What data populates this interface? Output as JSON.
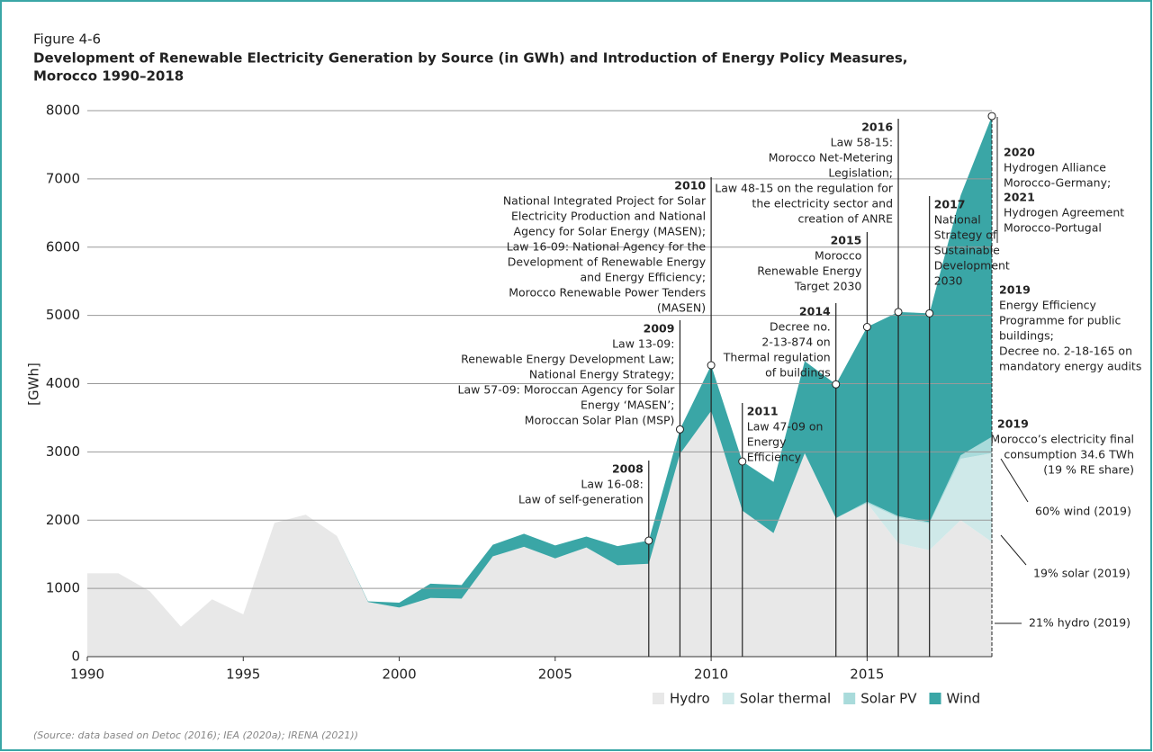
{
  "chart_data": {
    "type": "stacked_area",
    "figure_label": "Figure 4-6",
    "title": "Development of Renewable Electricity Generation by Source (in GWh) and Introduction of Energy Policy Measures,",
    "title_line2": "Morocco 1990–2018",
    "ylabel": "[GWh]",
    "source": "(Source: data based on Detoc (2016); IEA (2020a); IRENA (2021))",
    "x": [
      1990,
      1991,
      1992,
      1993,
      1994,
      1995,
      1996,
      1997,
      1998,
      1999,
      2000,
      2001,
      2002,
      2003,
      2004,
      2005,
      2006,
      2007,
      2008,
      2009,
      2010,
      2011,
      2012,
      2013,
      2014,
      2015,
      2016,
      2017,
      2018,
      2019
    ],
    "xlim": [
      1990,
      2019
    ],
    "xticks": [
      1990,
      1995,
      2000,
      2005,
      2010,
      2015
    ],
    "ylim": [
      0,
      8000
    ],
    "yticks": [
      0,
      1000,
      2000,
      3000,
      4000,
      5000,
      6000,
      7000,
      8000
    ],
    "grid": true,
    "series": [
      {
        "name": "Hydro",
        "color": "#e8e8e8",
        "values": [
          1220,
          1220,
          960,
          440,
          840,
          620,
          1960,
          2080,
          1770,
          800,
          720,
          860,
          850,
          1470,
          1610,
          1440,
          1600,
          1340,
          1360,
          2970,
          3600,
          2140,
          1810,
          2980,
          2030,
          2250,
          1660,
          1560,
          2000,
          1680
        ]
      },
      {
        "name": "Solar thermal",
        "color": "#cfe9e9",
        "values": [
          0,
          0,
          0,
          0,
          0,
          0,
          0,
          0,
          0,
          0,
          0,
          0,
          0,
          0,
          0,
          0,
          0,
          0,
          0,
          0,
          0,
          0,
          0,
          0,
          0,
          0,
          380,
          390,
          900,
          1300
        ]
      },
      {
        "name": "Solar PV",
        "color": "#a9dbdb",
        "values": [
          0,
          0,
          0,
          0,
          0,
          0,
          0,
          0,
          0,
          0,
          0,
          0,
          0,
          0,
          0,
          0,
          0,
          0,
          0,
          0,
          0,
          0,
          0,
          0,
          0,
          20,
          20,
          20,
          50,
          240
        ]
      },
      {
        "name": "Wind",
        "color": "#3aa6a6",
        "values": [
          0,
          0,
          0,
          0,
          0,
          0,
          0,
          0,
          0,
          10,
          70,
          210,
          200,
          170,
          190,
          190,
          160,
          280,
          340,
          360,
          670,
          720,
          750,
          1350,
          1960,
          2560,
          2990,
          3060,
          3810,
          4700
        ]
      }
    ],
    "annotations": [
      {
        "year": "2008",
        "lines": [
          "Law 16-08:",
          "Law of self-generation"
        ]
      },
      {
        "year": "2009",
        "lines": [
          "Law 13-09:",
          "Renewable Energy Development Law;",
          "National Energy Strategy;",
          "Law 57-09: Moroccan Agency for Solar",
          "Energy ‘MASEN’;",
          "Moroccan Solar Plan (MSP)"
        ]
      },
      {
        "year": "2010",
        "lines": [
          "National Integrated Project for Solar",
          "Electricity Production and National",
          "Agency for Solar Energy (MASEN);",
          "Law 16-09: National Agency for the",
          "Development of Renewable Energy",
          "and Energy Efficiency;",
          "Morocco Renewable Power Tenders",
          "(MASEN)"
        ]
      },
      {
        "year": "2011",
        "lines": [
          "Law 47-09 on",
          "Energy",
          "Efficiency"
        ]
      },
      {
        "year": "2014",
        "lines": [
          "Decree no.",
          "2-13-874 on",
          "Thermal regulation",
          "of buildings"
        ]
      },
      {
        "year": "2015",
        "lines": [
          "Morocco",
          "Renewable Energy",
          "Target 2030"
        ]
      },
      {
        "year": "2016",
        "lines": [
          "Law 58-15:",
          "Morocco Net-Metering",
          "Legislation;",
          "Law 48-15 on the regulation for",
          "the electricity sector and",
          "creation of ANRE"
        ]
      },
      {
        "year": "2017",
        "lines": [
          "National",
          "Strategy of",
          "Sustainable",
          "Development",
          "2030"
        ]
      }
    ],
    "side_notes": [
      {
        "year": "2020",
        "lines": [
          "Hydrogen Alliance",
          "Morocco-Germany;"
        ]
      },
      {
        "year": "2021",
        "lines": [
          "Hydrogen Agreement",
          "Morocco-Portugal"
        ]
      },
      {
        "year": "2019",
        "lines": [
          "Energy Efficiency",
          "Programme for public",
          "buildings;",
          "Decree no. 2-18-165 on",
          "mandatory energy audits"
        ]
      },
      {
        "year": "2019",
        "lines": [
          "Morocco’s electricity final",
          "consumption 34.6 TWh",
          "(19 % RE share)"
        ]
      }
    ],
    "shares": [
      "60% wind (2019)",
      "19% solar (2019)",
      "21% hydro (2019)"
    ]
  }
}
